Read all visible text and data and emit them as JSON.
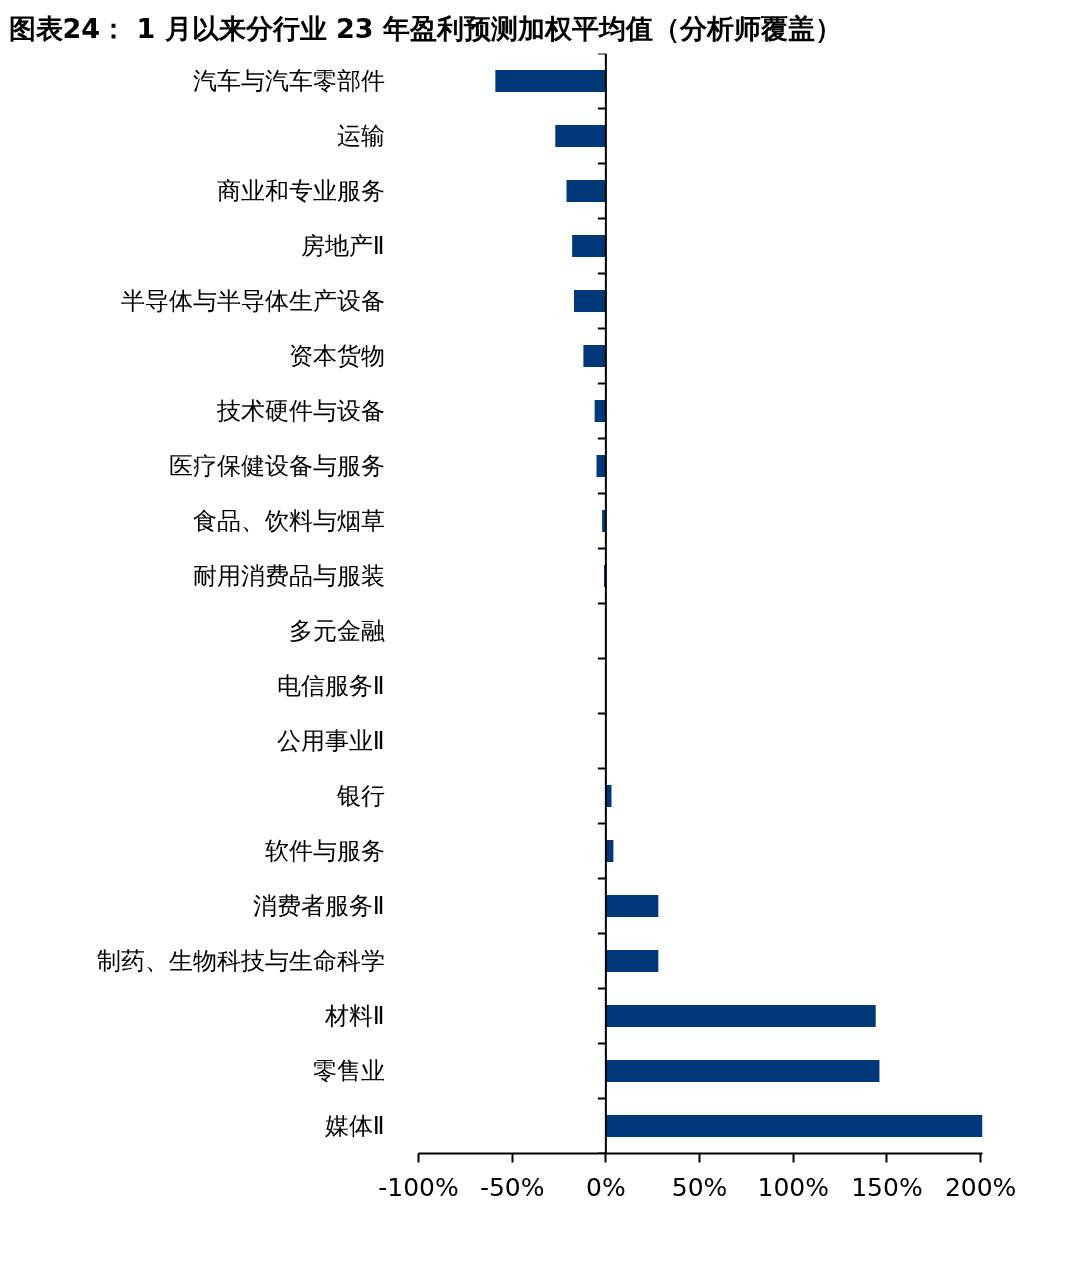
{
  "chart_data": {
    "type": "bar",
    "orientation": "horizontal",
    "title": "图表24： 1 月以来分行业 23 年盈利预测加权平均值（分析师覆盖）",
    "categories": [
      "汽车与汽车零部件",
      "运输",
      "商业和专业服务",
      "房地产Ⅱ",
      "半导体与半导体生产设备",
      "资本货物",
      "技术硬件与设备",
      "医疗保健设备与服务",
      "食品、饮料与烟草",
      "耐用消费品与服装",
      "多元金融",
      "电信服务Ⅱ",
      "公用事业Ⅱ",
      "银行",
      "软件与服务",
      "消费者服务Ⅱ",
      "制药、生物科技与生命科学",
      "材料Ⅱ",
      "零售业",
      "媒体Ⅱ"
    ],
    "values": [
      -59,
      -27,
      -21,
      -18,
      -17,
      -12,
      -6,
      -5,
      -2,
      -1,
      0,
      0,
      0,
      3,
      4,
      28,
      28,
      144,
      146,
      201
    ],
    "color": "#00387a",
    "xlim": [
      -100,
      201
    ],
    "xticks": [
      {
        "value": -100,
        "label": "-100%"
      },
      {
        "value": -50,
        "label": "-50%"
      },
      {
        "value": 0,
        "label": "0%"
      },
      {
        "value": 50,
        "label": "50%"
      },
      {
        "value": 100,
        "label": "100%"
      },
      {
        "value": 150,
        "label": "150%"
      },
      {
        "value": 200,
        "label": "200%"
      }
    ]
  }
}
